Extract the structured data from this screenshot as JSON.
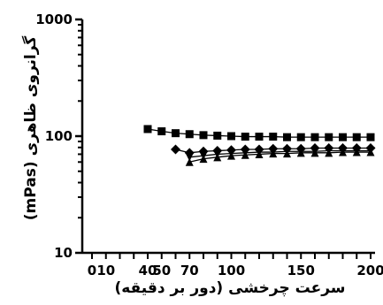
{
  "chart_data": {
    "type": "line",
    "title": "",
    "xlabel": "سرعت چرخشی (دور بر دقیقه)",
    "ylabel": "گرانروی ظاهری (mPas)",
    "xlim": [
      0,
      200
    ],
    "ylim": [
      10,
      1000
    ],
    "yscale": "log",
    "grid": false,
    "xticks": [
      0,
      10,
      40,
      50,
      70,
      100,
      150,
      200
    ],
    "xtick_labels": [
      "0",
      "10",
      "40",
      "50",
      "70",
      "100",
      "150",
      "200"
    ],
    "yticks": [
      10,
      100,
      1000
    ],
    "ytick_labels": [
      "10",
      "100",
      "1000"
    ],
    "series": [
      {
        "marker": "square",
        "x": [
          40,
          50,
          60,
          70,
          80,
          90,
          100,
          110,
          120,
          130,
          140,
          150,
          160,
          170,
          180,
          190,
          200
        ],
        "y": [
          115,
          110,
          106,
          104,
          102,
          101,
          100,
          99,
          99,
          99,
          98,
          98,
          98,
          98,
          98,
          98,
          98
        ]
      },
      {
        "marker": "diamond",
        "x": [
          60,
          70,
          80,
          90,
          100,
          110,
          120,
          130,
          140,
          150,
          160,
          170,
          180,
          190,
          200
        ],
        "y": [
          77,
          72,
          74,
          75,
          76,
          77,
          77,
          78,
          78,
          78,
          79,
          79,
          79,
          79,
          79
        ]
      },
      {
        "marker": "triangle-up",
        "x": [
          70,
          80,
          90,
          100,
          110,
          120,
          130,
          140,
          150,
          160,
          170,
          180,
          190,
          200
        ],
        "y": [
          60,
          64,
          66,
          68,
          69,
          70,
          71,
          71,
          72,
          72,
          72,
          73,
          73,
          73
        ]
      },
      {
        "marker": "triangle-down",
        "x": [
          70,
          80,
          90,
          100,
          110,
          120,
          130,
          140,
          150,
          160,
          170,
          180,
          190,
          200
        ],
        "y": [
          66,
          68,
          70,
          71,
          72,
          73,
          73,
          74,
          74,
          74,
          75,
          75,
          75,
          75
        ]
      }
    ]
  }
}
